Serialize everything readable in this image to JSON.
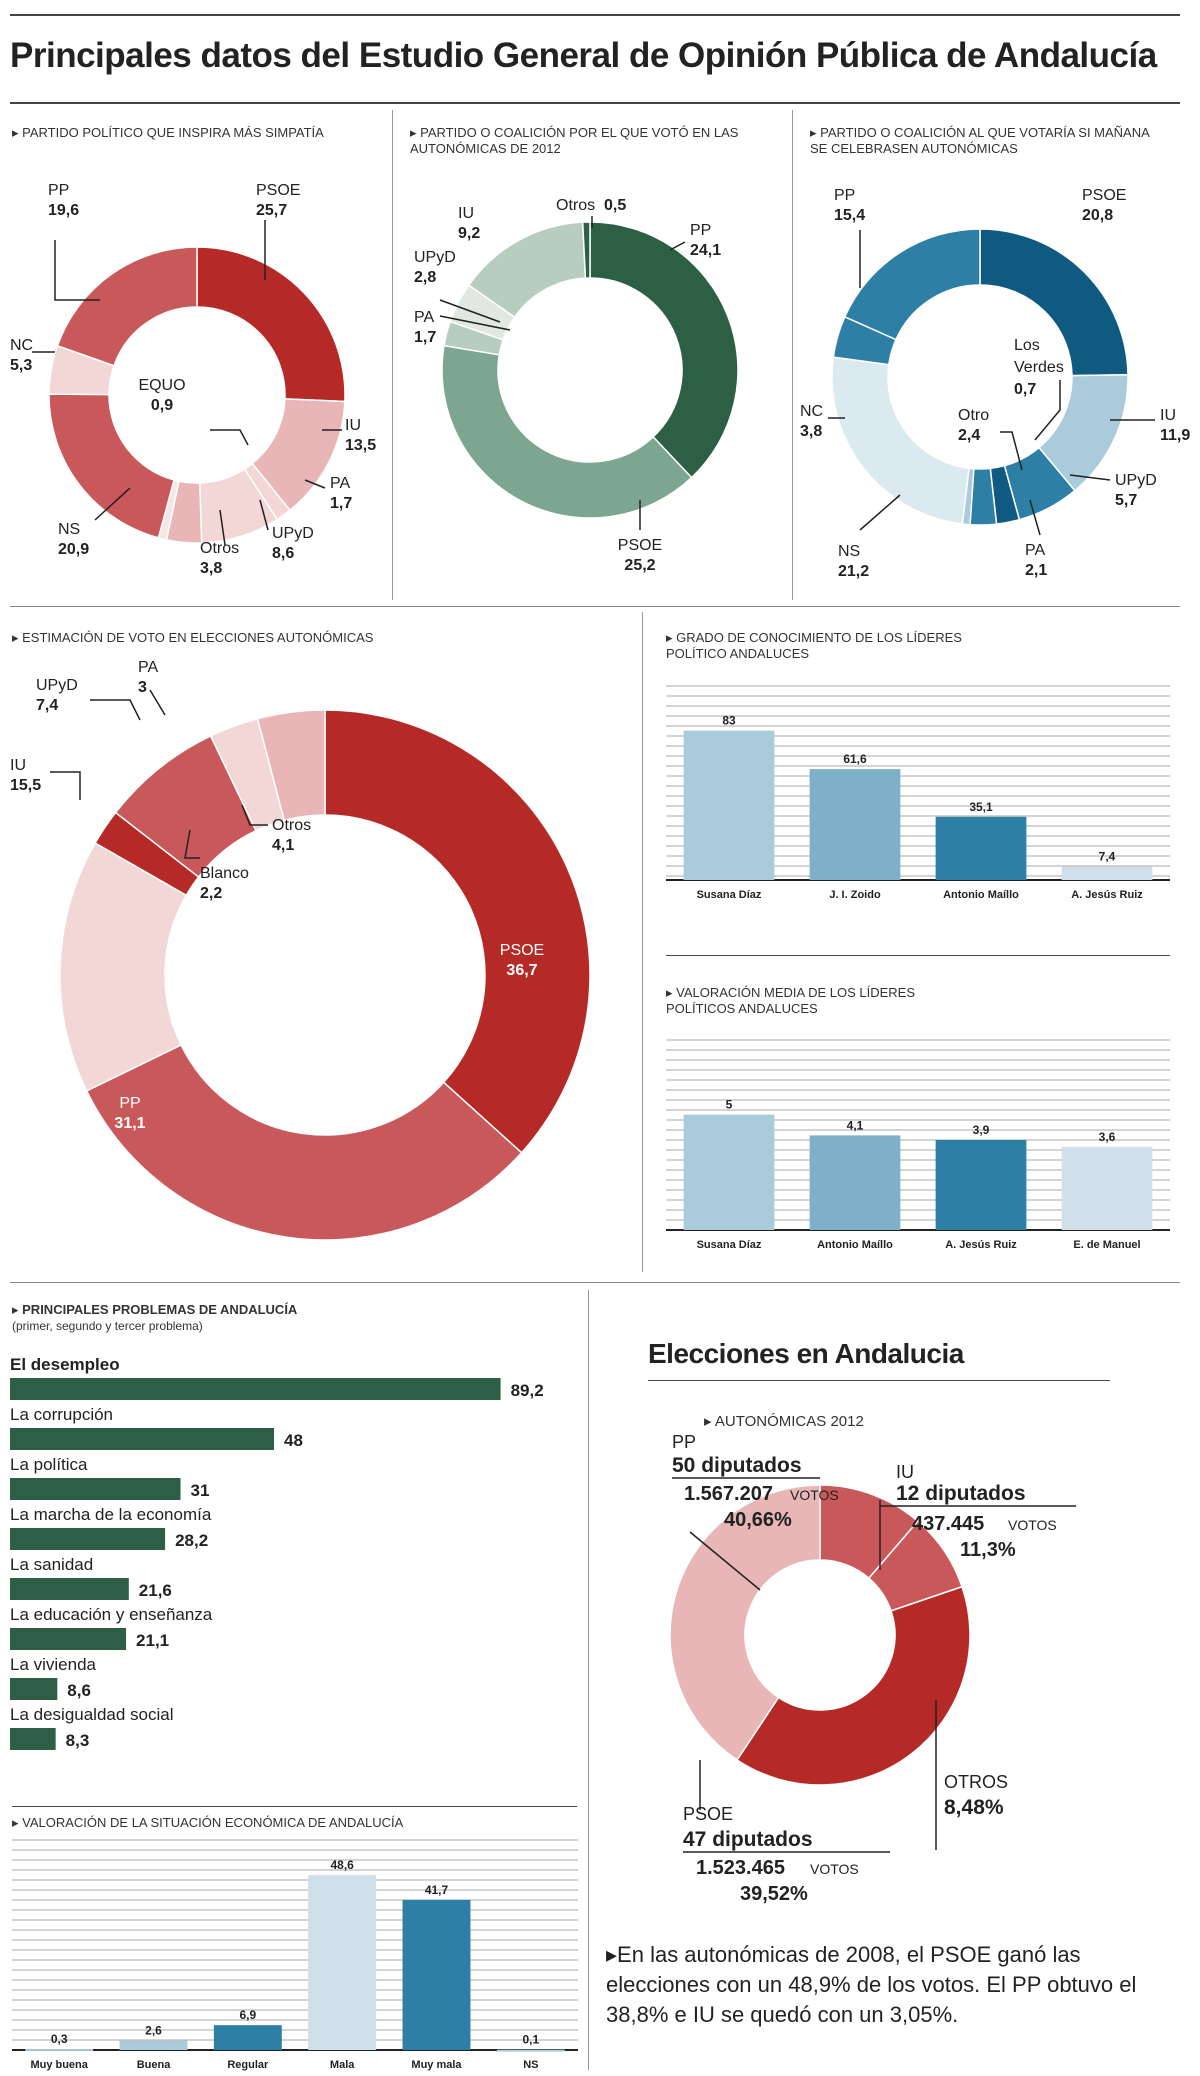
{
  "title": "Principales datos del Estudio General de Opinión Pública de Andalucía",
  "colors": {
    "red_dark": "#b52a26",
    "red_mid": "#c9585b",
    "red_light": "#e8b6b7",
    "red_pale": "#f3d6d6",
    "green_dark": "#2d5f45",
    "green_mid": "#7da690",
    "green_light": "#b7cdbf",
    "blue_dark": "#0f5a80",
    "blue_mid": "#2d7fa6",
    "blue_light": "#a9cbdc",
    "blue_pale": "#dbe9f0",
    "bar_green": "#2e5e45"
  },
  "sections": {
    "simpatia": "PARTIDO POLÍTICO QUE INSPIRA MÁS SIMPATÍA",
    "voto2012": "PARTIDO O COALICIÓN POR EL QUE VOTÓ EN LAS AUTONÓMICAS DE 2012",
    "votaria": "PARTIDO O COALICIÓN AL QUE VOTARÍA SI MAÑANA SE CELEBRASEN AUTONÓMICAS",
    "estimacion": "ESTIMACIÓN DE VOTO EN ELECCIONES AUTONÓMICAS",
    "conocimiento": "GRADO DE CONOCIMIENTO DE LOS LÍDERES POLÍTICO ANDALUCES",
    "valoracion": "VALORACIÓN MEDIA DE LOS LÍDERES POLÍTICOS ANDALUCES",
    "problemas": "PRINCIPALES PROBLEMAS DE ANDALUCÍA",
    "problemas_sub": "(primer, segundo y tercer problema)",
    "economia": "VALORACIÓN DE LA SITUACIÓN ECONÓMICA DE ANDALUCÍA",
    "elecciones": "Elecciones en Andalucia",
    "autonomicas": "AUTONÓMICAS 2012"
  },
  "chart_data": [
    {
      "id": "simpatia",
      "type": "pie",
      "title": "PARTIDO POLÍTICO QUE INSPIRA MÁS SIMPATÍA",
      "slices": [
        {
          "name": "PSOE",
          "value": 25.7,
          "label": "25,7"
        },
        {
          "name": "IU",
          "value": 13.5,
          "label": "13,5"
        },
        {
          "name": "PA",
          "value": 1.7,
          "label": "1,7"
        },
        {
          "name": "UPyD",
          "value": 8.6,
          "label": "8,6"
        },
        {
          "name": "Otros",
          "value": 3.8,
          "label": "3,8"
        },
        {
          "name": "EQUO",
          "value": 0.9,
          "label": "0,9"
        },
        {
          "name": "NS",
          "value": 20.9,
          "label": "20,9"
        },
        {
          "name": "NC",
          "value": 5.3,
          "label": "5,3"
        },
        {
          "name": "PP",
          "value": 19.6,
          "label": "19,6"
        }
      ]
    },
    {
      "id": "voto2012",
      "type": "pie",
      "title": "PARTIDO O COALICIÓN POR EL QUE VOTÓ EN LAS AUTONÓMICAS DE 2012",
      "slices": [
        {
          "name": "PP",
          "value": 24.1,
          "label": "24,1"
        },
        {
          "name": "PSOE",
          "value": 25.2,
          "label": "25,2"
        },
        {
          "name": "PA",
          "value": 1.7,
          "label": "1,7"
        },
        {
          "name": "UPyD",
          "value": 2.8,
          "label": "2,8"
        },
        {
          "name": "IU",
          "value": 9.2,
          "label": "9,2"
        },
        {
          "name": "Otros",
          "value": 0.5,
          "label": "0,5"
        }
      ]
    },
    {
      "id": "votaria",
      "type": "pie",
      "title": "PARTIDO O COALICIÓN AL QUE VOTARÍA SI MAÑANA SE CELEBRASEN AUTONÓMICAS",
      "slices": [
        {
          "name": "PSOE",
          "value": 20.8,
          "label": "20,8"
        },
        {
          "name": "IU",
          "value": 11.9,
          "label": "11,9"
        },
        {
          "name": "UPyD",
          "value": 5.7,
          "label": "5,7"
        },
        {
          "name": "PA",
          "value": 2.1,
          "label": "2,1"
        },
        {
          "name": "Otro",
          "value": 2.4,
          "label": "2,4"
        },
        {
          "name": "Los Verdes",
          "value": 0.7,
          "label": "0,7"
        },
        {
          "name": "NS",
          "value": 21.2,
          "label": "21,2"
        },
        {
          "name": "NC",
          "value": 3.8,
          "label": "3,8"
        },
        {
          "name": "PP",
          "value": 15.4,
          "label": "15,4"
        }
      ]
    },
    {
      "id": "estimacion",
      "type": "pie",
      "title": "ESTIMACIÓN DE VOTO EN ELECCIONES AUTONÓMICAS",
      "slices": [
        {
          "name": "PSOE",
          "value": 36.7,
          "label": "36,7"
        },
        {
          "name": "PP",
          "value": 31.1,
          "label": "31,1"
        },
        {
          "name": "IU",
          "value": 15.5,
          "label": "15,5"
        },
        {
          "name": "Blanco",
          "value": 2.2,
          "label": "2,2"
        },
        {
          "name": "UPyD",
          "value": 7.4,
          "label": "7,4"
        },
        {
          "name": "PA",
          "value": 3,
          "label": "3"
        },
        {
          "name": "Otros",
          "value": 4.1,
          "label": "4,1"
        }
      ]
    },
    {
      "id": "conocimiento",
      "type": "bar",
      "title": "GRADO DE CONOCIMIENTO DE LOS LÍDERES POLÍTICO ANDALUCES",
      "categories": [
        "Susana Díaz",
        "J. I. Zoido",
        "Antonio Maíllo",
        "A. Jesús Ruiz"
      ],
      "values": [
        83,
        61.6,
        35.1,
        7.4
      ],
      "labels": [
        "83",
        "61,6",
        "35,1",
        "7,4"
      ],
      "ylim": [
        0,
        100
      ]
    },
    {
      "id": "valoracion",
      "type": "bar",
      "title": "VALORACIÓN MEDIA DE LOS LÍDERES POLÍTICOS ANDALUCES",
      "categories": [
        "Susana Díaz",
        "Antonio Maíllo",
        "A. Jesús Ruiz",
        "E. de Manuel"
      ],
      "values": [
        5,
        4.1,
        3.9,
        3.6
      ],
      "labels": [
        "5",
        "4,1",
        "3,9",
        "3,6"
      ],
      "ylim": [
        0,
        6.5
      ]
    },
    {
      "id": "problemas",
      "type": "bar",
      "orientation": "horizontal",
      "title": "PRINCIPALES PROBLEMAS DE ANDALUCÍA",
      "categories": [
        "El desempleo",
        "La corrupción",
        "La política",
        "La marcha de la economía",
        "La sanidad",
        "La educación y enseñanza",
        "La vivienda",
        "La desigualdad social"
      ],
      "values": [
        89.2,
        48,
        31,
        28.2,
        21.6,
        21.1,
        8.6,
        8.3
      ],
      "labels": [
        "89,2",
        "48",
        "31",
        "28,2",
        "21,6",
        "21,1",
        "8,6",
        "8,3"
      ],
      "xlim": [
        0,
        100
      ]
    },
    {
      "id": "economia",
      "type": "bar",
      "title": "VALORACIÓN DE LA SITUACIÓN ECONÓMICA DE ANDALUCÍA",
      "categories": [
        "Muy buena",
        "Buena",
        "Regular",
        "Mala",
        "Muy mala",
        "NS"
      ],
      "values": [
        0.3,
        2.6,
        6.9,
        48.6,
        41.7,
        0.1
      ],
      "labels": [
        "0,3",
        "2,6",
        "6,9",
        "48,6",
        "41,7",
        "0,1"
      ],
      "ylim": [
        0,
        50
      ]
    },
    {
      "id": "elecciones2012",
      "type": "pie",
      "title": "AUTONÓMICAS 2012",
      "slices": [
        {
          "name": "IU",
          "value": 11.3,
          "seats": "12 diputados",
          "votes": "437.445",
          "pct": "11,3%"
        },
        {
          "name": "OTROS",
          "value": 8.48,
          "pct": "8,48%"
        },
        {
          "name": "PSOE",
          "value": 39.52,
          "seats": "47 diputados",
          "votes": "1.523.465",
          "pct": "39,52%"
        },
        {
          "name": "PP",
          "value": 40.66,
          "seats": "50 diputados",
          "votes": "1.567.207",
          "pct": "40,66%"
        }
      ],
      "votes_unit": "VOTOS"
    }
  ],
  "note": "En las autonómicas de 2008, el PSOE ganó las elecciones con un 48,9% de los votos. El PP obtuvo el 38,8% e IU se quedó con un 3,05%."
}
